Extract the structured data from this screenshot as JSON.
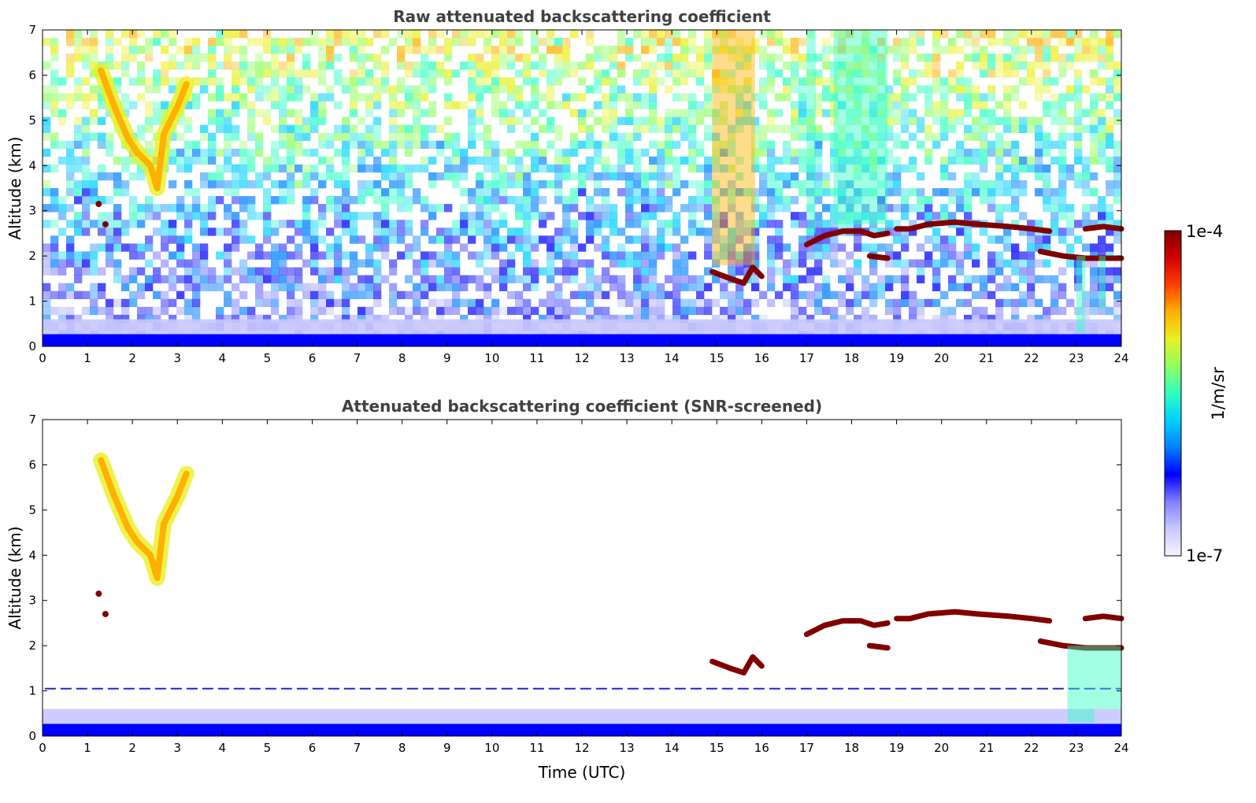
{
  "chart_data": [
    {
      "type": "heatmap",
      "title": "Raw attenuated backscattering coefficient",
      "xlabel": "",
      "ylabel": "Altitude (km)",
      "xlim": [
        0,
        24
      ],
      "ylim": [
        0,
        7
      ],
      "x_ticks": [
        "0",
        "1",
        "2",
        "3",
        "4",
        "5",
        "6",
        "7",
        "8",
        "9",
        "10",
        "11",
        "12",
        "13",
        "14",
        "15",
        "16",
        "17",
        "18",
        "19",
        "20",
        "21",
        "22",
        "23",
        "24"
      ],
      "y_ticks": [
        "0",
        "1",
        "2",
        "3",
        "4",
        "5",
        "6",
        "7"
      ],
      "background": "noisy",
      "features": [
        {
          "kind": "surface_layer",
          "x": [
            0,
            24
          ],
          "y": [
            0,
            0.6
          ],
          "level": "low"
        },
        {
          "kind": "cirrus",
          "points": [
            [
              1.3,
              6.1
            ],
            [
              1.6,
              5.3
            ],
            [
              1.9,
              4.6
            ],
            [
              2.1,
              4.3
            ],
            [
              2.4,
              4.0
            ],
            [
              2.55,
              3.5
            ],
            [
              2.7,
              4.7
            ],
            [
              3.0,
              5.3
            ],
            [
              3.2,
              5.8
            ]
          ],
          "level": "high"
        },
        {
          "kind": "cloud_dot",
          "points": [
            [
              1.25,
              3.15
            ],
            [
              1.4,
              2.7
            ]
          ],
          "level": "max"
        },
        {
          "kind": "cloud_layer",
          "points": [
            [
              14.9,
              1.65
            ],
            [
              15.3,
              1.5
            ],
            [
              15.6,
              1.4
            ],
            [
              15.8,
              1.75
            ],
            [
              16.0,
              1.55
            ]
          ],
          "level": "max"
        },
        {
          "kind": "cloud_layer",
          "points": [
            [
              17.0,
              2.25
            ],
            [
              17.4,
              2.45
            ],
            [
              17.8,
              2.55
            ],
            [
              18.2,
              2.55
            ],
            [
              18.5,
              2.45
            ],
            [
              18.8,
              2.5
            ]
          ],
          "level": "max"
        },
        {
          "kind": "cloud_layer",
          "points": [
            [
              18.4,
              2.0
            ],
            [
              18.8,
              1.95
            ]
          ],
          "level": "max"
        },
        {
          "kind": "cloud_layer",
          "points": [
            [
              19.0,
              2.6
            ],
            [
              19.3,
              2.6
            ],
            [
              19.7,
              2.7
            ],
            [
              20.3,
              2.75
            ],
            [
              20.8,
              2.7
            ],
            [
              21.5,
              2.65
            ],
            [
              22.0,
              2.6
            ],
            [
              22.4,
              2.55
            ]
          ],
          "level": "max"
        },
        {
          "kind": "cloud_layer",
          "points": [
            [
              22.2,
              2.1
            ],
            [
              22.7,
              2.0
            ],
            [
              23.2,
              1.95
            ],
            [
              23.6,
              1.95
            ],
            [
              24.0,
              1.95
            ]
          ],
          "level": "max"
        },
        {
          "kind": "cloud_layer",
          "points": [
            [
              23.2,
              2.6
            ],
            [
              23.6,
              2.65
            ],
            [
              24.0,
              2.6
            ]
          ],
          "level": "max"
        },
        {
          "kind": "noisy_band",
          "x": [
            14.9,
            15.85
          ],
          "y": [
            1.8,
            7
          ],
          "level": "high"
        },
        {
          "kind": "noisy_band",
          "x": [
            17.6,
            18.8
          ],
          "y": [
            2.7,
            7
          ],
          "level": "medium"
        },
        {
          "kind": "noisy_band",
          "x": [
            17.0,
            17.2
          ],
          "y": [
            2.5,
            7
          ],
          "level": "medium"
        },
        {
          "kind": "precip_streak",
          "x": [
            23.0,
            23.2
          ],
          "y": [
            0.3,
            2.0
          ],
          "level": "medium"
        },
        {
          "kind": "precip_streak",
          "x": [
            23.5,
            23.65
          ],
          "y": [
            0.8,
            2.0
          ],
          "level": "medium"
        }
      ]
    },
    {
      "type": "heatmap",
      "title": "Attenuated backscattering coefficient (SNR-screened)",
      "xlabel": "Time (UTC)",
      "ylabel": "Altitude (km)",
      "xlim": [
        0,
        24
      ],
      "ylim": [
        0,
        7
      ],
      "x_ticks": [
        "0",
        "1",
        "2",
        "3",
        "4",
        "5",
        "6",
        "7",
        "8",
        "9",
        "10",
        "11",
        "12",
        "13",
        "14",
        "15",
        "16",
        "17",
        "18",
        "19",
        "20",
        "21",
        "22",
        "23",
        "24"
      ],
      "y_ticks": [
        "0",
        "1",
        "2",
        "3",
        "4",
        "5",
        "6",
        "7"
      ],
      "background": "clean",
      "features": [
        {
          "kind": "surface_layer",
          "x": [
            0,
            24
          ],
          "y": [
            0,
            0.6
          ],
          "level": "low"
        },
        {
          "kind": "dashed_line",
          "x": [
            0.05,
            24
          ],
          "y": 1.05,
          "level": "low"
        },
        {
          "kind": "cirrus",
          "points": [
            [
              1.3,
              6.1
            ],
            [
              1.6,
              5.3
            ],
            [
              1.9,
              4.6
            ],
            [
              2.1,
              4.3
            ],
            [
              2.4,
              4.0
            ],
            [
              2.55,
              3.5
            ],
            [
              2.7,
              4.7
            ],
            [
              3.0,
              5.3
            ],
            [
              3.2,
              5.8
            ]
          ],
          "level": "high"
        },
        {
          "kind": "cloud_dot",
          "points": [
            [
              1.25,
              3.15
            ],
            [
              1.4,
              2.7
            ]
          ],
          "level": "max"
        },
        {
          "kind": "cloud_layer",
          "points": [
            [
              14.9,
              1.65
            ],
            [
              15.3,
              1.5
            ],
            [
              15.6,
              1.4
            ],
            [
              15.8,
              1.75
            ],
            [
              16.0,
              1.55
            ]
          ],
          "level": "max"
        },
        {
          "kind": "cloud_layer",
          "points": [
            [
              17.0,
              2.25
            ],
            [
              17.4,
              2.45
            ],
            [
              17.8,
              2.55
            ],
            [
              18.2,
              2.55
            ],
            [
              18.5,
              2.45
            ],
            [
              18.8,
              2.5
            ]
          ],
          "level": "max"
        },
        {
          "kind": "cloud_layer",
          "points": [
            [
              18.4,
              2.0
            ],
            [
              18.8,
              1.95
            ]
          ],
          "level": "max"
        },
        {
          "kind": "cloud_layer",
          "points": [
            [
              19.0,
              2.6
            ],
            [
              19.3,
              2.6
            ],
            [
              19.7,
              2.7
            ],
            [
              20.3,
              2.75
            ],
            [
              20.8,
              2.7
            ],
            [
              21.5,
              2.65
            ],
            [
              22.0,
              2.6
            ],
            [
              22.4,
              2.55
            ]
          ],
          "level": "max"
        },
        {
          "kind": "cloud_layer",
          "points": [
            [
              22.2,
              2.1
            ],
            [
              22.7,
              2.0
            ],
            [
              23.2,
              1.95
            ],
            [
              23.6,
              1.95
            ],
            [
              24.0,
              1.95
            ]
          ],
          "level": "max"
        },
        {
          "kind": "cloud_layer",
          "points": [
            [
              23.2,
              2.6
            ],
            [
              23.6,
              2.65
            ],
            [
              24.0,
              2.6
            ]
          ],
          "level": "max"
        },
        {
          "kind": "precip_streak",
          "x": [
            22.8,
            23.4
          ],
          "y": [
            0.3,
            2.0
          ],
          "level": "medium"
        },
        {
          "kind": "precip_streak",
          "x": [
            23.4,
            24.0
          ],
          "y": [
            0.6,
            2.0
          ],
          "level": "medium"
        }
      ]
    }
  ],
  "colorbar": {
    "max_label": "1e-4",
    "min_label": "1e-7",
    "unit_label": "1/m/sr",
    "stops": [
      "#f5f5ff",
      "#c8c8ff",
      "#8080ff",
      "#0000ff",
      "#0080ff",
      "#00d0ff",
      "#30ffc0",
      "#90ff60",
      "#e8f020",
      "#ffb000",
      "#ff4000",
      "#d00000",
      "#800000"
    ]
  }
}
